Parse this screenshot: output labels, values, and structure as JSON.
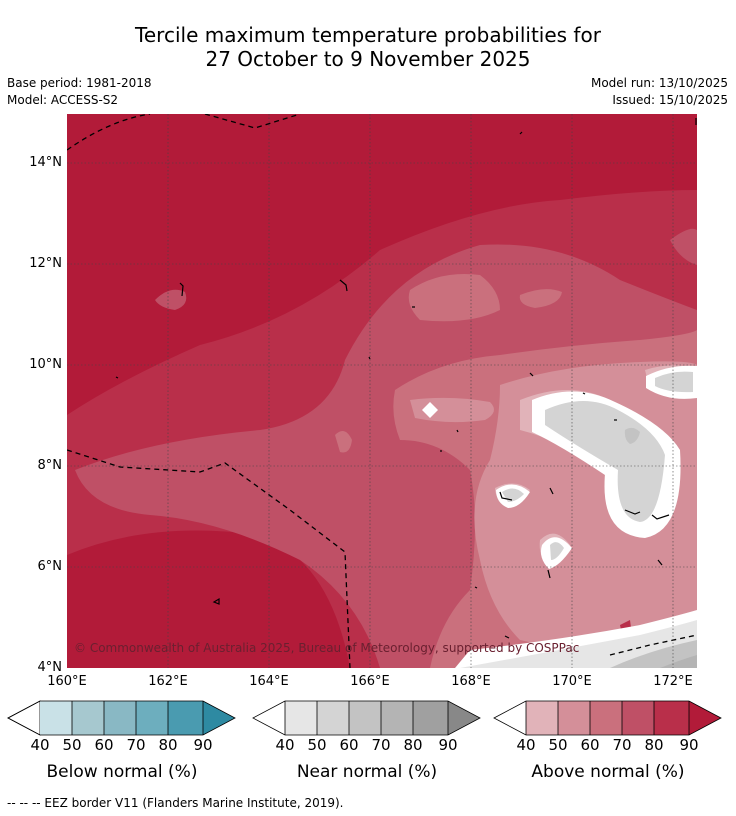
{
  "title": {
    "line1": "Tercile maximum temperature probabilities for",
    "line2": "27 October to 9 November 2025"
  },
  "meta": {
    "base_period": "Base period: 1981-2018",
    "model": "Model: ACCESS-S2",
    "model_run": "Model run: 13/10/2025",
    "issued": "Issued: 15/10/2025"
  },
  "map": {
    "latitude_labels": [
      "14°N",
      "12°N",
      "10°N",
      "8°N",
      "6°N",
      "4°N"
    ],
    "longitude_labels": [
      "160°E",
      "162°E",
      "164°E",
      "166°E",
      "168°E",
      "170°E",
      "172°E"
    ],
    "copyright": "© Commonwealth of Australia 2025, Bureau of Meteorology, supported by COSPPac",
    "extent": {
      "lon": [
        160,
        172.5
      ],
      "lat": [
        4,
        15
      ]
    }
  },
  "colorbars": [
    {
      "title": "Below normal (%)",
      "ticks": [
        "40",
        "50",
        "60",
        "70",
        "80",
        "90"
      ],
      "colors": [
        "#c9e1e7",
        "#a6c8cf",
        "#89b8c4",
        "#6daebe",
        "#4a9bb0",
        "#2e8aa2"
      ]
    },
    {
      "title": "Near normal (%)",
      "ticks": [
        "40",
        "50",
        "60",
        "70",
        "80",
        "90"
      ],
      "colors": [
        "#e6e6e6",
        "#d4d4d4",
        "#c3c3c3",
        "#b4b4b4",
        "#a0a0a0",
        "#888888"
      ]
    },
    {
      "title": "Above normal (%)",
      "ticks": [
        "40",
        "50",
        "60",
        "70",
        "80",
        "90"
      ],
      "colors": [
        "#e1b3b9",
        "#d48f99",
        "#ca707d",
        "#bf5066",
        "#b92f4a",
        "#b21b39"
      ]
    }
  ],
  "footnote": "--  --  -- EEZ border V11 (Flanders Marine Institute, 2019)."
}
